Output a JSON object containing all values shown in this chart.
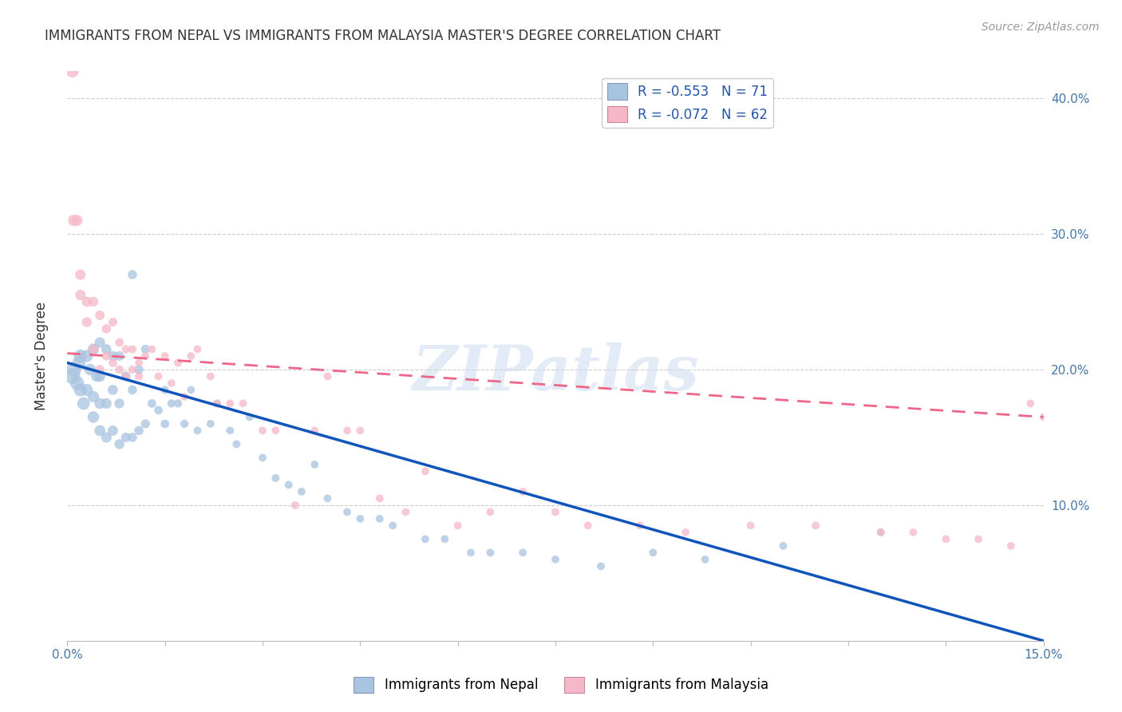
{
  "title": "IMMIGRANTS FROM NEPAL VS IMMIGRANTS FROM MALAYSIA MASTER'S DEGREE CORRELATION CHART",
  "source": "Source: ZipAtlas.com",
  "ylabel": "Master's Degree",
  "legend_nepal": "R = -0.553   N = 71",
  "legend_malaysia": "R = -0.072   N = 62",
  "legend_label_nepal": "Immigrants from Nepal",
  "legend_label_malaysia": "Immigrants from Malaysia",
  "nepal_color": "#a8c4e0",
  "malaysia_color": "#f4b8c8",
  "nepal_line_color": "#1155bb",
  "malaysia_line_color": "#ee6688",
  "watermark": "ZIPatlas",
  "xlim": [
    0.0,
    0.15
  ],
  "ylim": [
    0.0,
    0.42
  ],
  "nepal_line_x": [
    0.0,
    0.15
  ],
  "nepal_line_y": [
    0.205,
    0.0
  ],
  "malaysia_line_x": [
    0.0,
    0.15
  ],
  "malaysia_line_y": [
    0.212,
    0.165
  ],
  "nepal_scatter_x": [
    0.0008,
    0.001,
    0.0015,
    0.0018,
    0.002,
    0.002,
    0.0025,
    0.003,
    0.003,
    0.0035,
    0.004,
    0.004,
    0.004,
    0.0045,
    0.005,
    0.005,
    0.005,
    0.005,
    0.006,
    0.006,
    0.006,
    0.007,
    0.007,
    0.007,
    0.008,
    0.008,
    0.008,
    0.009,
    0.009,
    0.01,
    0.01,
    0.01,
    0.011,
    0.011,
    0.012,
    0.012,
    0.013,
    0.014,
    0.015,
    0.015,
    0.016,
    0.017,
    0.018,
    0.019,
    0.02,
    0.022,
    0.023,
    0.025,
    0.026,
    0.028,
    0.03,
    0.032,
    0.034,
    0.036,
    0.038,
    0.04,
    0.043,
    0.045,
    0.048,
    0.05,
    0.055,
    0.058,
    0.062,
    0.065,
    0.07,
    0.075,
    0.082,
    0.09,
    0.098,
    0.11,
    0.125
  ],
  "nepal_scatter_y": [
    0.195,
    0.2,
    0.19,
    0.205,
    0.185,
    0.21,
    0.175,
    0.185,
    0.21,
    0.2,
    0.165,
    0.18,
    0.215,
    0.195,
    0.155,
    0.175,
    0.195,
    0.22,
    0.15,
    0.175,
    0.215,
    0.155,
    0.185,
    0.21,
    0.145,
    0.175,
    0.21,
    0.15,
    0.195,
    0.15,
    0.185,
    0.27,
    0.155,
    0.2,
    0.16,
    0.215,
    0.175,
    0.17,
    0.16,
    0.185,
    0.175,
    0.175,
    0.16,
    0.185,
    0.155,
    0.16,
    0.175,
    0.155,
    0.145,
    0.165,
    0.135,
    0.12,
    0.115,
    0.11,
    0.13,
    0.105,
    0.095,
    0.09,
    0.09,
    0.085,
    0.075,
    0.075,
    0.065,
    0.065,
    0.065,
    0.06,
    0.055,
    0.065,
    0.06,
    0.07,
    0.08
  ],
  "nepal_scatter_size": [
    200,
    180,
    160,
    150,
    140,
    140,
    130,
    120,
    120,
    110,
    110,
    105,
    105,
    100,
    100,
    95,
    95,
    90,
    90,
    90,
    85,
    85,
    85,
    80,
    80,
    80,
    75,
    75,
    75,
    70,
    70,
    70,
    70,
    65,
    65,
    65,
    60,
    60,
    60,
    55,
    55,
    55,
    55,
    50,
    50,
    50,
    50,
    50,
    50,
    50,
    50,
    50,
    50,
    50,
    50,
    50,
    50,
    50,
    50,
    50,
    50,
    50,
    50,
    50,
    50,
    50,
    50,
    50,
    50,
    50,
    50
  ],
  "malaysia_scatter_x": [
    0.0008,
    0.001,
    0.0015,
    0.002,
    0.002,
    0.003,
    0.003,
    0.004,
    0.004,
    0.005,
    0.005,
    0.006,
    0.006,
    0.007,
    0.007,
    0.008,
    0.008,
    0.009,
    0.009,
    0.01,
    0.01,
    0.011,
    0.011,
    0.012,
    0.013,
    0.014,
    0.015,
    0.016,
    0.017,
    0.018,
    0.019,
    0.02,
    0.022,
    0.023,
    0.025,
    0.027,
    0.03,
    0.032,
    0.035,
    0.038,
    0.04,
    0.043,
    0.045,
    0.048,
    0.052,
    0.055,
    0.06,
    0.065,
    0.07,
    0.075,
    0.08,
    0.088,
    0.095,
    0.105,
    0.115,
    0.125,
    0.13,
    0.135,
    0.14,
    0.145,
    0.148,
    0.15
  ],
  "malaysia_scatter_y": [
    0.42,
    0.31,
    0.31,
    0.27,
    0.255,
    0.25,
    0.235,
    0.25,
    0.215,
    0.24,
    0.2,
    0.23,
    0.21,
    0.235,
    0.205,
    0.22,
    0.2,
    0.215,
    0.195,
    0.2,
    0.215,
    0.195,
    0.205,
    0.21,
    0.215,
    0.195,
    0.21,
    0.19,
    0.205,
    0.18,
    0.21,
    0.215,
    0.195,
    0.175,
    0.175,
    0.175,
    0.155,
    0.155,
    0.1,
    0.155,
    0.195,
    0.155,
    0.155,
    0.105,
    0.095,
    0.125,
    0.085,
    0.095,
    0.11,
    0.095,
    0.085,
    0.085,
    0.08,
    0.085,
    0.085,
    0.08,
    0.08,
    0.075,
    0.075,
    0.07,
    0.175,
    0.165
  ],
  "malaysia_scatter_size": [
    130,
    110,
    100,
    90,
    90,
    85,
    80,
    80,
    75,
    75,
    70,
    70,
    65,
    65,
    60,
    60,
    60,
    55,
    55,
    55,
    55,
    55,
    50,
    50,
    50,
    50,
    50,
    50,
    50,
    50,
    50,
    50,
    50,
    50,
    50,
    50,
    50,
    50,
    50,
    50,
    50,
    50,
    50,
    50,
    50,
    50,
    50,
    50,
    50,
    50,
    50,
    50,
    50,
    50,
    50,
    50,
    50,
    50,
    50,
    50,
    50,
    50
  ]
}
